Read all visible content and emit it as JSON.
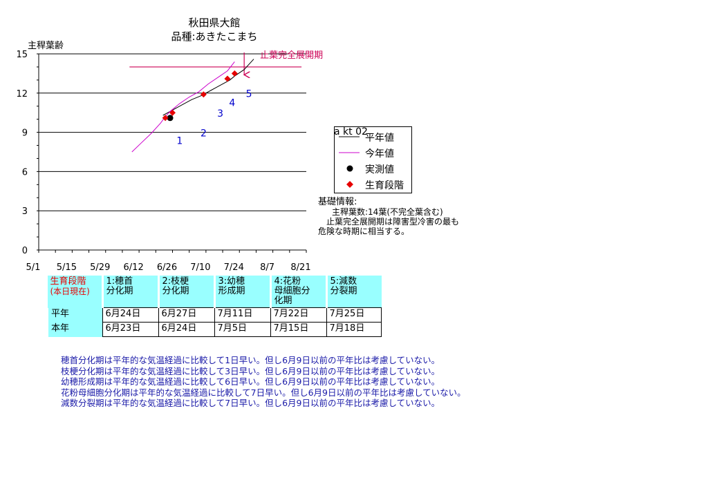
{
  "header": {
    "location": "秋田県大館",
    "variety": "品種:あきたこまち"
  },
  "chart_data": {
    "type": "line",
    "ylabel": "主稈葉齢",
    "ylim": [
      0,
      15
    ],
    "yticks": [
      0,
      3,
      6,
      9,
      12,
      15
    ],
    "x_tick_labels": [
      "5/1",
      "5/15",
      "5/29",
      "6/12",
      "6/26",
      "7/10",
      "7/24",
      "8/7",
      "8/21"
    ],
    "xlim": [
      "2002-05-01",
      "2002-08-21"
    ],
    "grid": true,
    "series": [
      {
        "name": "平年値",
        "color": "#000000",
        "x": [
          "2002-06-22",
          "2002-06-26",
          "2002-06-30",
          "2002-07-04",
          "2002-07-08",
          "2002-07-12",
          "2002-07-16",
          "2002-07-20",
          "2002-07-22",
          "2002-07-26",
          "2002-07-30"
        ],
        "y": [
          10.3,
          10.7,
          11.1,
          11.5,
          11.8,
          12.2,
          12.6,
          13.0,
          13.3,
          13.8,
          14.6
        ]
      },
      {
        "name": "今年値",
        "color": "#cc00cc",
        "x": [
          "2002-06-09",
          "2002-06-13",
          "2002-06-17",
          "2002-06-21",
          "2002-06-23",
          "2002-06-25",
          "2002-06-29",
          "2002-07-03",
          "2002-07-07",
          "2002-07-11",
          "2002-07-15",
          "2002-07-19",
          "2002-07-22"
        ],
        "y": [
          7.5,
          8.2,
          8.9,
          9.7,
          10.2,
          10.6,
          11.2,
          11.7,
          12.1,
          12.7,
          13.2,
          13.7,
          14.4
        ]
      },
      {
        "name": "実測値",
        "marker": "circle",
        "x": [
          "2002-06-25"
        ],
        "y": [
          10.1
        ]
      },
      {
        "name": "生育段階",
        "marker": "diamond",
        "color": "#e60000",
        "x": [
          "2002-06-23",
          "2002-06-26",
          "2002-07-09",
          "2002-07-19",
          "2002-07-22"
        ],
        "y": [
          10.1,
          10.5,
          11.9,
          13.1,
          13.5
        ]
      }
    ],
    "reference_line": {
      "y": 14,
      "label": "止葉完全展開期",
      "color": "#cc0055",
      "x_from": "2002-06-08",
      "x_to": "2002-08-19"
    },
    "arrow_date": "2002-07-26",
    "stage_labels": [
      {
        "text": "1",
        "x": "2002-06-29",
        "y": 8.1
      },
      {
        "text": "2",
        "x": "2002-07-09",
        "y": 8.7
      },
      {
        "text": "3",
        "x": "2002-07-16",
        "y": 10.2
      },
      {
        "text": "4",
        "x": "2002-07-21",
        "y": 11.0
      },
      {
        "text": "5",
        "x": "2002-07-28",
        "y": 11.7
      }
    ],
    "stage_label_color": "#0000cc"
  },
  "legend": {
    "code": "a kt 02",
    "items": [
      "平年値",
      "今年値",
      "実測値",
      "生育段階"
    ]
  },
  "info": {
    "head": "基礎情報:",
    "line1": "主稈葉数:14葉(不完全葉含む)",
    "line2": "止葉完全展開期は障害型冷害の最も",
    "line3": "危険な時期に相当する。"
  },
  "table": {
    "corner": [
      "生育段階",
      "(本日現在)"
    ],
    "headers": [
      [
        "1:穂首",
        "分化期"
      ],
      [
        "2:枝梗",
        "分化期"
      ],
      [
        "3:幼穂",
        "形成期"
      ],
      [
        "4:花粉",
        "母細胞分",
        "化期"
      ],
      [
        "5:減数",
        "分裂期"
      ]
    ],
    "rows": [
      {
        "label": "平年",
        "values": [
          "6月24日",
          "6月27日",
          "7月11日",
          "7月22日",
          "7月25日"
        ]
      },
      {
        "label": "本年",
        "values": [
          "6月23日",
          "6月24日",
          "7月5日",
          "7月15日",
          "7月18日"
        ]
      }
    ]
  },
  "notes": [
    "穂首分化期は平年的な気温経過に比較して1日早い。但し6月9日以前の平年比は考慮していない。",
    "枝梗分化期は平年的な気温経過に比較して3日早い。但し6月9日以前の平年比は考慮していない。",
    "幼穂形成期は平年的な気温経過に比較して6日早い。但し6月9日以前の平年比は考慮していない。",
    "花粉母細胞分化期は平年的な気温経過に比較して7日早い。但し6月9日以前の平年比は考慮していない。",
    "減数分裂期は平年的な気温経過に比較して7日早い。但し6月9日以前の平年比は考慮していない。"
  ]
}
